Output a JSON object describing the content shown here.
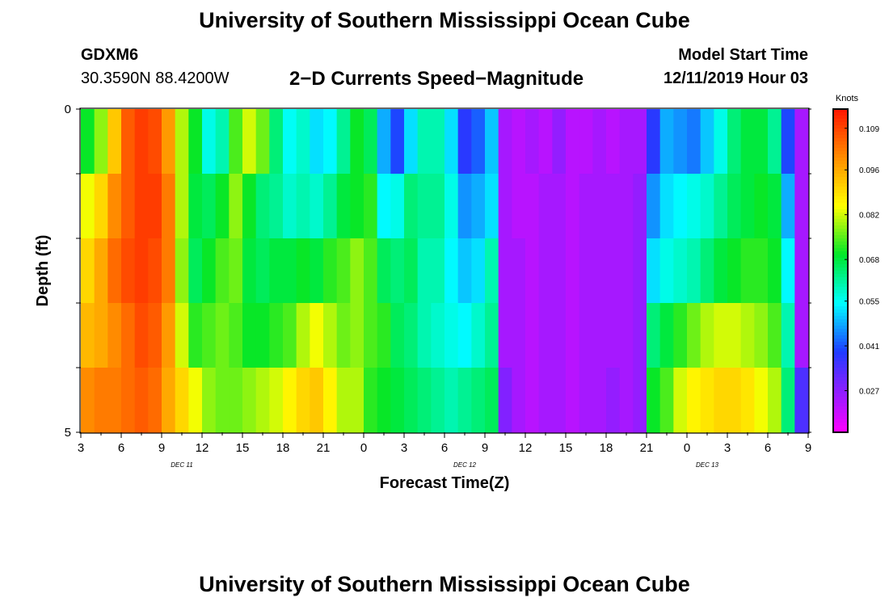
{
  "header": {
    "title": "University of Southern Mississippi Ocean Cube",
    "station": "GDXM6",
    "coordinates": "30.3590N 88.4200W",
    "plot_title": "2−D Currents Speed−Magnitude",
    "model_start_label": "Model Start Time",
    "model_start_value": "12/11/2019 Hour 03"
  },
  "footer": {
    "title": "University of Southern Mississippi Ocean Cube"
  },
  "chart_data": {
    "type": "heatmap",
    "xlabel": "Forecast Time(Z)",
    "ylabel": "Depth (ft)",
    "x_tick_labels": [
      "3",
      "6",
      "9",
      "12",
      "15",
      "18",
      "21",
      "0",
      "3",
      "6",
      "9",
      "12",
      "15",
      "18",
      "21",
      "0",
      "3",
      "6",
      "9"
    ],
    "x_sublabels": [
      {
        "label": "DEC 11",
        "tick_index": 3
      },
      {
        "label": "DEC 12",
        "tick_index": 10
      },
      {
        "label": "DEC 13",
        "tick_index": 16
      }
    ],
    "y_tick_labels": [
      "0",
      "5"
    ],
    "ylim": [
      0,
      5
    ],
    "hours": 54,
    "colorbar": {
      "label": "Knots",
      "min": 0.014,
      "max": 0.115,
      "ticks": [
        "0.109",
        "0.096",
        "0.082",
        "0.068",
        "0.055",
        "0.041",
        "0.027"
      ],
      "tick_values": [
        0.109,
        0.096,
        0.082,
        0.068,
        0.055,
        0.041,
        0.027
      ]
    },
    "row_depths_ft": [
      0.5,
      1.5,
      2.5,
      3.5,
      4.5
    ],
    "values": [
      [
        0.07,
        0.078,
        0.092,
        0.106,
        0.11,
        0.108,
        0.098,
        0.08,
        0.07,
        0.056,
        0.06,
        0.074,
        0.082,
        0.076,
        0.064,
        0.055,
        0.058,
        0.052,
        0.054,
        0.062,
        0.07,
        0.066,
        0.048,
        0.04,
        0.052,
        0.06,
        0.06,
        0.052,
        0.038,
        0.042,
        0.05,
        0.024,
        0.022,
        0.024,
        0.022,
        0.026,
        0.022,
        0.022,
        0.024,
        0.022,
        0.024,
        0.024,
        0.038,
        0.048,
        0.046,
        0.044,
        0.05,
        0.056,
        0.064,
        0.068,
        0.068,
        0.062,
        0.04,
        0.024
      ],
      [
        0.084,
        0.09,
        0.1,
        0.106,
        0.11,
        0.11,
        0.102,
        0.08,
        0.068,
        0.066,
        0.07,
        0.078,
        0.07,
        0.064,
        0.062,
        0.058,
        0.06,
        0.058,
        0.062,
        0.068,
        0.07,
        0.072,
        0.054,
        0.056,
        0.064,
        0.062,
        0.062,
        0.056,
        0.046,
        0.048,
        0.052,
        0.024,
        0.022,
        0.022,
        0.024,
        0.024,
        0.022,
        0.024,
        0.024,
        0.024,
        0.024,
        0.026,
        0.046,
        0.052,
        0.054,
        0.056,
        0.058,
        0.062,
        0.066,
        0.068,
        0.07,
        0.068,
        0.048,
        0.024
      ],
      [
        0.09,
        0.096,
        0.104,
        0.108,
        0.11,
        0.108,
        0.102,
        0.078,
        0.066,
        0.07,
        0.074,
        0.076,
        0.068,
        0.066,
        0.068,
        0.068,
        0.07,
        0.068,
        0.072,
        0.074,
        0.078,
        0.074,
        0.066,
        0.064,
        0.066,
        0.06,
        0.06,
        0.054,
        0.05,
        0.052,
        0.06,
        0.024,
        0.024,
        0.022,
        0.024,
        0.024,
        0.022,
        0.024,
        0.024,
        0.024,
        0.024,
        0.026,
        0.052,
        0.056,
        0.058,
        0.06,
        0.064,
        0.068,
        0.07,
        0.072,
        0.072,
        0.07,
        0.054,
        0.024
      ],
      [
        0.094,
        0.096,
        0.1,
        0.104,
        0.108,
        0.106,
        0.098,
        0.082,
        0.072,
        0.074,
        0.076,
        0.074,
        0.07,
        0.07,
        0.072,
        0.074,
        0.08,
        0.084,
        0.08,
        0.076,
        0.078,
        0.074,
        0.072,
        0.066,
        0.064,
        0.06,
        0.058,
        0.056,
        0.054,
        0.058,
        0.062,
        0.024,
        0.024,
        0.022,
        0.024,
        0.024,
        0.022,
        0.024,
        0.024,
        0.024,
        0.024,
        0.026,
        0.064,
        0.068,
        0.072,
        0.076,
        0.08,
        0.082,
        0.082,
        0.08,
        0.078,
        0.074,
        0.06,
        0.024
      ],
      [
        0.1,
        0.102,
        0.102,
        0.104,
        0.106,
        0.104,
        0.096,
        0.09,
        0.084,
        0.078,
        0.076,
        0.076,
        0.078,
        0.08,
        0.082,
        0.086,
        0.09,
        0.092,
        0.086,
        0.08,
        0.08,
        0.072,
        0.07,
        0.068,
        0.066,
        0.064,
        0.062,
        0.06,
        0.062,
        0.064,
        0.066,
        0.028,
        0.024,
        0.022,
        0.024,
        0.024,
        0.022,
        0.024,
        0.024,
        0.026,
        0.024,
        0.026,
        0.07,
        0.074,
        0.082,
        0.086,
        0.088,
        0.09,
        0.09,
        0.088,
        0.084,
        0.08,
        0.064,
        0.034
      ]
    ]
  }
}
